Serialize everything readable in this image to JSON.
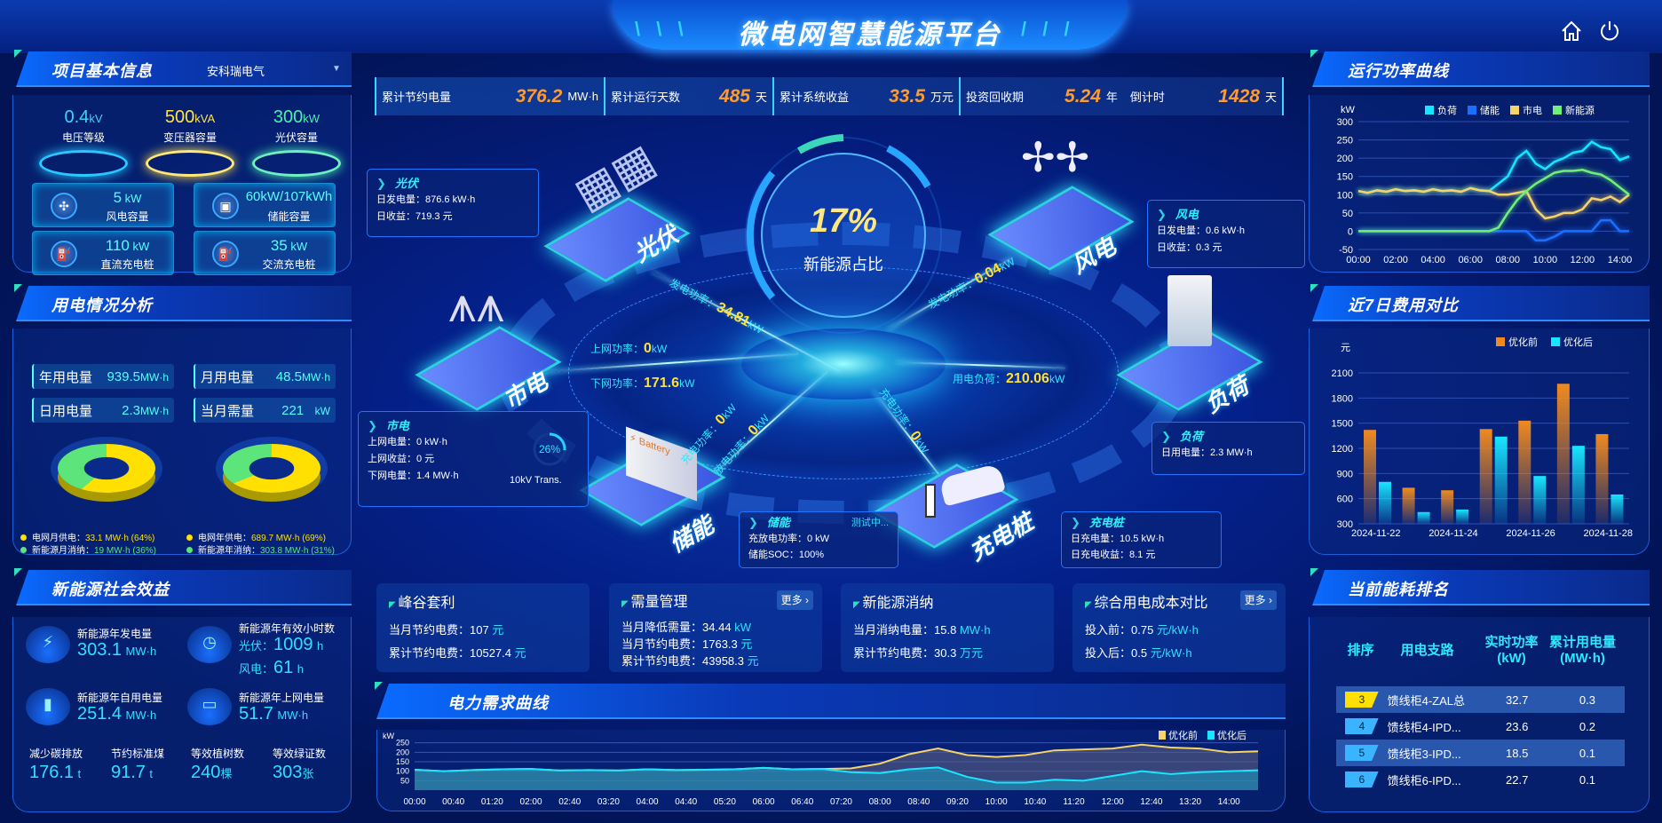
{
  "header": {
    "title": "微电网智慧能源平台",
    "left_deco": "\\ \\ \\",
    "right_deco": "/ / /",
    "icons": [
      "home-icon",
      "power-icon"
    ]
  },
  "stats": [
    {
      "label": "累计节约电量",
      "value": "376.2",
      "unit": "MW·h"
    },
    {
      "label": "累计运行天数",
      "value": "485",
      "unit": "天"
    },
    {
      "label": "累计系统收益",
      "value": "33.5",
      "unit": "万元"
    },
    {
      "label": "投资回收期",
      "value": "5.24",
      "unit": "年"
    },
    {
      "label": "倒计时",
      "value": "1428",
      "unit": "天"
    }
  ],
  "project": {
    "title": "项目基本信息",
    "selector": "安科瑞电气",
    "caps": [
      {
        "value": "0.4",
        "unit": "kV",
        "label": "电压等级",
        "color": "#3ad6ff"
      },
      {
        "value": "500",
        "unit": "kVA",
        "label": "变压器容量",
        "color": "#ffe24a"
      },
      {
        "value": "300",
        "unit": "kW",
        "label": "光伏容量",
        "color": "#4af0b0"
      }
    ],
    "items": [
      {
        "value": "5",
        "unit": " kW",
        "label": "风电容量",
        "icon": "wind-turbine-icon"
      },
      {
        "value": "60kW/107kWh",
        "unit": "",
        "label": "储能容量",
        "icon": "battery-icon"
      },
      {
        "value": "110",
        "unit": " kW",
        "label": "直流充电桩",
        "icon": "charger-icon"
      },
      {
        "value": "35",
        "unit": " kW",
        "label": "交流充电桩",
        "icon": "charger-icon"
      }
    ]
  },
  "usage": {
    "title": "用电情况分析",
    "items": [
      {
        "label": "年用电量",
        "value": "939.5",
        "unit": "MW·h"
      },
      {
        "label": "月用电量",
        "value": "48.5",
        "unit": "MW·h"
      },
      {
        "label": "日用电量",
        "value": "2.3",
        "unit": "MW·h"
      },
      {
        "label": "当月需量",
        "value": "221",
        "unit": "kW"
      }
    ],
    "donuts": [
      {
        "grid_pct": 64,
        "new_pct": 36
      },
      {
        "grid_pct": 69,
        "new_pct": 31
      }
    ],
    "legend": [
      {
        "label": "电网月供电：",
        "value": "33.1 MW·h (64%)",
        "color": "#ffe000"
      },
      {
        "label": "电网年供电：",
        "value": "689.7 MW·h (69%)",
        "color": "#ffe000"
      },
      {
        "label": "新能源月消纳：",
        "value": "19 MW·h (36%)",
        "color": "#5ce57a"
      },
      {
        "label": "新能源年消纳：",
        "value": "303.8 MW·h (31%)",
        "color": "#5ce57a"
      }
    ]
  },
  "social": {
    "title": "新能源社会效益",
    "gen_label": "新能源年发电量",
    "gen_value": "303.1",
    "gen_unit": "MW·h",
    "hours_label": "新能源年有效小时数",
    "pv_label": "光伏：",
    "pv_value": "1009",
    "pv_unit": "h",
    "wind_label": "风电：",
    "wind_value": "61",
    "wind_unit": "h",
    "self_label": "新能源年自用电量",
    "self_value": "251.4",
    "self_unit": "MW·h",
    "grid_label": "新能源年上网电量",
    "grid_value": "51.7",
    "grid_unit": "MW·h",
    "carbon_label": "减少碳排放",
    "carbon_value": "176.1",
    "carbon_unit": "t",
    "coal_label": "节约标准煤",
    "coal_value": "91.7",
    "coal_unit": "t",
    "tree_label": "等效植树数",
    "tree_value": "240",
    "tree_unit": "棵",
    "cert_label": "等效绿证数",
    "cert_value": "303",
    "cert_unit": "张"
  },
  "center": {
    "ratio": "17%",
    "ratio_label": "新能源占比",
    "nodes": {
      "pv": "光伏",
      "wind": "风电",
      "grid": "市电",
      "load": "负荷",
      "storage": "储能",
      "charger": "充电桩"
    },
    "flows": {
      "pv": {
        "label": "发电功率：",
        "value": "34.81",
        "unit": "kW"
      },
      "grid_up": {
        "label": "上网功率：",
        "value": "0",
        "unit": "kW"
      },
      "grid_down": {
        "label": "下网功率：",
        "value": "171.6",
        "unit": "kW"
      },
      "wind": {
        "label": "发电功率：",
        "value": "0.04",
        "unit": "kW"
      },
      "load": {
        "label": "用电负荷：",
        "value": "210.06",
        "unit": "kW"
      },
      "charger": {
        "label": "充电功率：",
        "value": "0",
        "unit": "kW"
      },
      "storage_charge": {
        "label": "充电功率：",
        "value": "0",
        "unit": "kW"
      },
      "storage_discharge": {
        "label": "放电功率：",
        "value": "0",
        "unit": "kW"
      }
    },
    "boxes": {
      "pv": {
        "title": "光伏",
        "lines": [
          "日发电量：876.6 kW·h",
          "日收益：719.3 元"
        ]
      },
      "wind": {
        "title": "风电",
        "lines": [
          "日发电量：0.6 kW·h",
          "日收益：0.3 元"
        ]
      },
      "grid": {
        "title": "市电",
        "lines": [
          "上网电量：0 kW·h",
          "上网收益：0 元",
          "下网电量：1.4 MW·h"
        ],
        "trans_pct": "26%",
        "trans_pct_value": 26,
        "trans_label": "10kV Trans."
      },
      "load": {
        "title": "负荷",
        "lines": [
          "日用电量：2.3 MW·h"
        ]
      },
      "storage": {
        "title": "储能",
        "status": "测试中...",
        "lines": [
          "充放电功率：0 kW",
          "储能SOC：100%"
        ]
      },
      "charger": {
        "title": "充电桩",
        "lines": [
          "日充电量：10.5 kW·h",
          "日充电收益：8.1 元"
        ]
      }
    }
  },
  "cards": [
    {
      "title": "峰谷套利",
      "rows": [
        {
          "label": "当月节约电费：",
          "value": "107",
          "unit": "元"
        },
        {
          "label": "累计节约电费：",
          "value": "10527.4",
          "unit": "元"
        }
      ]
    },
    {
      "title": "需量管理",
      "more": "更多 ›",
      "rows": [
        {
          "label": "当月降低需量：",
          "value": "34.44",
          "unit": "kW"
        },
        {
          "label": "当月节约电费：",
          "value": "1763.3",
          "unit": "元"
        },
        {
          "label": "累计节约电费：",
          "value": "43958.3",
          "unit": "元"
        }
      ]
    },
    {
      "title": "新能源消纳",
      "rows": [
        {
          "label": "当月消纳电量：",
          "value": "15.8",
          "unit": "MW·h"
        },
        {
          "label": "累计节约电费：",
          "value": "30.3",
          "unit": "万元"
        }
      ]
    },
    {
      "title": "综合用电成本对比",
      "more": "更多 ›",
      "rows": [
        {
          "label": "投入前：",
          "value": "0.75",
          "unit": "元/kW·h"
        },
        {
          "label": "投入后：",
          "value": "0.5",
          "unit": "元/kW·h"
        }
      ]
    }
  ],
  "demand": {
    "title": "电力需求曲线"
  },
  "power": {
    "title": "运行功率曲线"
  },
  "cost": {
    "title": "近7日费用对比"
  },
  "ranking": {
    "title": "当前能耗排名",
    "headers": [
      "排序",
      "用电支路",
      "实时功率\n(kW)",
      "累计用电量\n(MW·h)"
    ],
    "rows": [
      {
        "rank": "3",
        "name": "馈线柜4-ZAL总",
        "power": "32.7",
        "energy": "0.3",
        "color": "#ffe000"
      },
      {
        "rank": "4",
        "name": "馈线柜4-IPD...",
        "power": "23.6",
        "energy": "0.2",
        "color": "#3ab4ff"
      },
      {
        "rank": "5",
        "name": "馈线柜3-IPD...",
        "power": "18.5",
        "energy": "0.1",
        "color": "#3ab4ff"
      },
      {
        "rank": "6",
        "name": "馈线柜6-IPD...",
        "power": "22.7",
        "energy": "0.1",
        "color": "#3ab4ff"
      }
    ]
  },
  "chart_data": [
    {
      "type": "line",
      "ylabel": "kW",
      "ylim": [
        -50,
        300
      ],
      "yticks": [
        -50,
        0,
        50,
        100,
        150,
        200,
        250,
        300
      ],
      "grid": true,
      "legend": "top",
      "x": [
        "00:00",
        "00:30",
        "01:00",
        "01:30",
        "02:00",
        "02:30",
        "03:00",
        "03:30",
        "04:00",
        "04:30",
        "05:00",
        "05:30",
        "06:00",
        "06:30",
        "07:00",
        "07:30",
        "08:00",
        "08:30",
        "09:00",
        "09:30",
        "10:00",
        "10:30",
        "11:00",
        "11:30",
        "12:00",
        "12:30",
        "13:00",
        "13:30",
        "14:00",
        "14:30"
      ],
      "xticks": [
        "00:00",
        "02:00",
        "04:00",
        "06:00",
        "08:00",
        "10:00",
        "12:00",
        "14:00"
      ],
      "series": [
        {
          "name": "负荷",
          "color": "#18e6ff",
          "values": [
            110,
            105,
            112,
            108,
            115,
            110,
            112,
            108,
            115,
            110,
            112,
            108,
            118,
            112,
            110,
            130,
            150,
            200,
            220,
            185,
            170,
            190,
            200,
            215,
            220,
            245,
            230,
            225,
            195,
            205
          ]
        },
        {
          "name": "储能",
          "color": "#1a6fff",
          "values": [
            0,
            0,
            0,
            0,
            0,
            0,
            0,
            0,
            0,
            0,
            0,
            0,
            0,
            0,
            0,
            0,
            0,
            0,
            0,
            -25,
            -25,
            -15,
            0,
            0,
            0,
            0,
            30,
            30,
            0,
            0
          ]
        },
        {
          "name": "市电",
          "color": "#f5d36a",
          "values": [
            110,
            105,
            112,
            108,
            115,
            110,
            112,
            108,
            115,
            110,
            112,
            108,
            118,
            112,
            110,
            100,
            100,
            105,
            110,
            60,
            35,
            40,
            50,
            50,
            60,
            90,
            85,
            95,
            80,
            100
          ]
        },
        {
          "name": "新能源",
          "color": "#6ef07a",
          "values": [
            0,
            0,
            0,
            0,
            0,
            0,
            0,
            0,
            0,
            0,
            0,
            0,
            0,
            0,
            0,
            10,
            50,
            85,
            110,
            130,
            145,
            160,
            165,
            165,
            168,
            160,
            155,
            140,
            120,
            100
          ]
        }
      ]
    },
    {
      "type": "bar",
      "ylabel": "元",
      "ylim": [
        300,
        2100
      ],
      "yticks": [
        300,
        600,
        900,
        1200,
        1500,
        1800,
        2100
      ],
      "grid": true,
      "legend": "top-right",
      "categories": [
        "2024-11-22",
        "2024-11-23",
        "2024-11-24",
        "2024-11-25",
        "2024-11-26",
        "2024-11-27",
        "2024-11-28"
      ],
      "xticks": [
        "2024-11-22",
        "2024-11-24",
        "2024-11-26",
        "2024-11-28"
      ],
      "series": [
        {
          "name": "优化前",
          "color": "#f08a20",
          "values": [
            1420,
            730,
            700,
            1430,
            1530,
            1970,
            1370
          ]
        },
        {
          "name": "优化后",
          "color": "#18e6ff",
          "values": [
            800,
            440,
            470,
            1340,
            870,
            1230,
            650
          ]
        }
      ]
    },
    {
      "type": "area",
      "ylabel": "kW",
      "ylim": [
        0,
        300
      ],
      "yticks": [
        50,
        100,
        150,
        200,
        250
      ],
      "grid": true,
      "legend": "top-right",
      "x": [
        "00:00",
        "00:30",
        "01:00",
        "01:30",
        "02:00",
        "02:30",
        "03:00",
        "03:30",
        "04:00",
        "04:30",
        "05:00",
        "05:30",
        "06:00",
        "06:30",
        "07:00",
        "07:30",
        "08:00",
        "08:30",
        "09:00",
        "09:30",
        "10:00",
        "10:30",
        "11:00",
        "11:30",
        "12:00",
        "12:30",
        "13:00",
        "13:30",
        "14:00",
        "14:30"
      ],
      "xticks": [
        "00:00",
        "00:40",
        "01:20",
        "02:00",
        "02:40",
        "03:20",
        "04:00",
        "04:40",
        "05:20",
        "06:00",
        "06:40",
        "07:20",
        "08:00",
        "08:40",
        "09:20",
        "10:00",
        "10:40",
        "11:20",
        "12:00",
        "12:40",
        "13:20",
        "14:00"
      ],
      "series": [
        {
          "name": "优化前",
          "color": "#f5d36a",
          "values": [
            108,
            100,
            106,
            110,
            112,
            104,
            106,
            104,
            110,
            106,
            108,
            110,
            118,
            110,
            112,
            115,
            140,
            190,
            220,
            185,
            175,
            185,
            210,
            215,
            220,
            240,
            225,
            220,
            200,
            205
          ]
        },
        {
          "name": "优化后",
          "color": "#18e6ff",
          "values": [
            108,
            100,
            106,
            110,
            112,
            104,
            106,
            104,
            110,
            106,
            108,
            110,
            118,
            110,
            112,
            95,
            90,
            110,
            120,
            70,
            40,
            40,
            55,
            50,
            75,
            100,
            85,
            95,
            100,
            105
          ]
        }
      ]
    }
  ]
}
